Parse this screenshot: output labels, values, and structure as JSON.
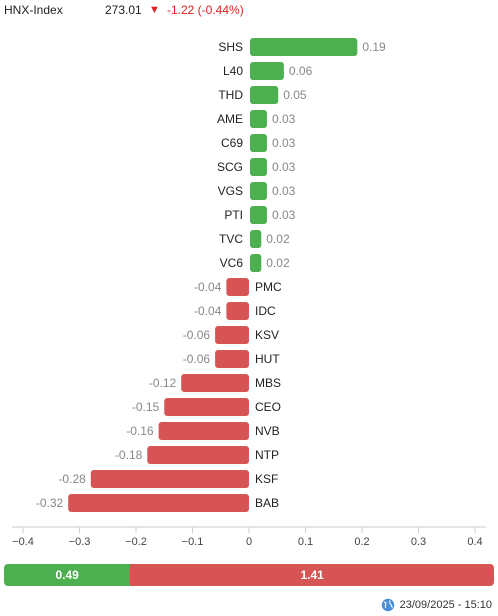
{
  "header": {
    "index_name": "HNX-Index",
    "index_value": "273.01",
    "direction_icon": "down-triangle-icon",
    "change": "-1.22 (-0.44%)"
  },
  "colors": {
    "positive": "#4caf50",
    "negative": "#d65454",
    "down": "#e02020"
  },
  "chart_data": {
    "type": "bar",
    "orientation": "horizontal",
    "categories": [
      "SHS",
      "L40",
      "THD",
      "AME",
      "C69",
      "SCG",
      "VGS",
      "PTI",
      "TVC",
      "VC6",
      "PMC",
      "IDC",
      "KSV",
      "HUT",
      "MBS",
      "CEO",
      "NVB",
      "NTP",
      "KSF",
      "BAB"
    ],
    "values": [
      0.19,
      0.06,
      0.05,
      0.03,
      0.03,
      0.03,
      0.03,
      0.03,
      0.02,
      0.02,
      -0.04,
      -0.04,
      -0.06,
      -0.06,
      -0.12,
      -0.15,
      -0.16,
      -0.18,
      -0.28,
      -0.32
    ],
    "value_labels": [
      "0.19",
      "0.06",
      "0.05",
      "0.03",
      "0.03",
      "0.03",
      "0.03",
      "0.03",
      "0.02",
      "0.02",
      "-0.04",
      "-0.04",
      "-0.06",
      "-0.06",
      "-0.12",
      "-0.15",
      "-0.16",
      "-0.18",
      "-0.28",
      "-0.32"
    ],
    "xlim": [
      -0.4,
      0.4
    ],
    "xticks": [
      -0.4,
      -0.3,
      -0.2,
      -0.1,
      0,
      0.1,
      0.2,
      0.3,
      0.4
    ],
    "xtick_labels": [
      "−0.4",
      "−0.3",
      "−0.2",
      "−0.1",
      "0",
      "0.1",
      "0.2",
      "0.3",
      "0.4"
    ],
    "grid": false
  },
  "summary": {
    "positive_total": 0.49,
    "negative_total": 1.41,
    "positive_label": "0.49",
    "negative_label": "1.41"
  },
  "footer": {
    "timestamp": "23/09/2025 - 15:10",
    "icon": "globe-icon"
  }
}
